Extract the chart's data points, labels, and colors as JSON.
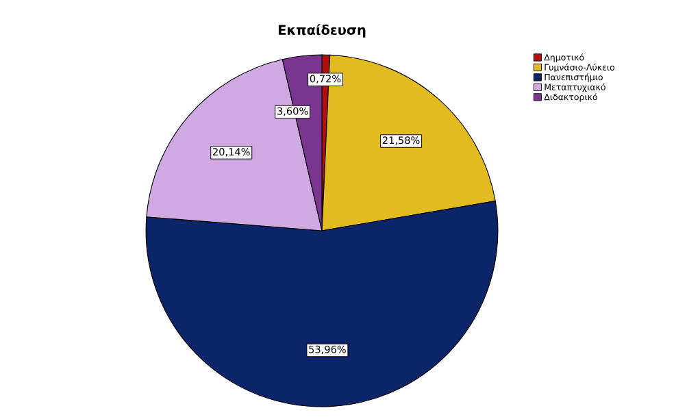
{
  "chart_data": {
    "type": "pie",
    "title": "Εκπαίδευση",
    "categories": [
      "Δημοτικό",
      "Γυμνάσιο-Λύκειο",
      "Πανεπιστήμιο",
      "Μεταπτυχιακό",
      "Διδακτορικό"
    ],
    "values": [
      0.72,
      21.58,
      53.96,
      20.14,
      3.6
    ],
    "value_labels": [
      "0,72%",
      "21,58%",
      "53,96%",
      "20,14%",
      "3,60%"
    ],
    "colors": [
      "#b01010",
      "#e1bb1f",
      "#0c2468",
      "#d0a9e3",
      "#7a3591"
    ],
    "legend": "top right"
  }
}
